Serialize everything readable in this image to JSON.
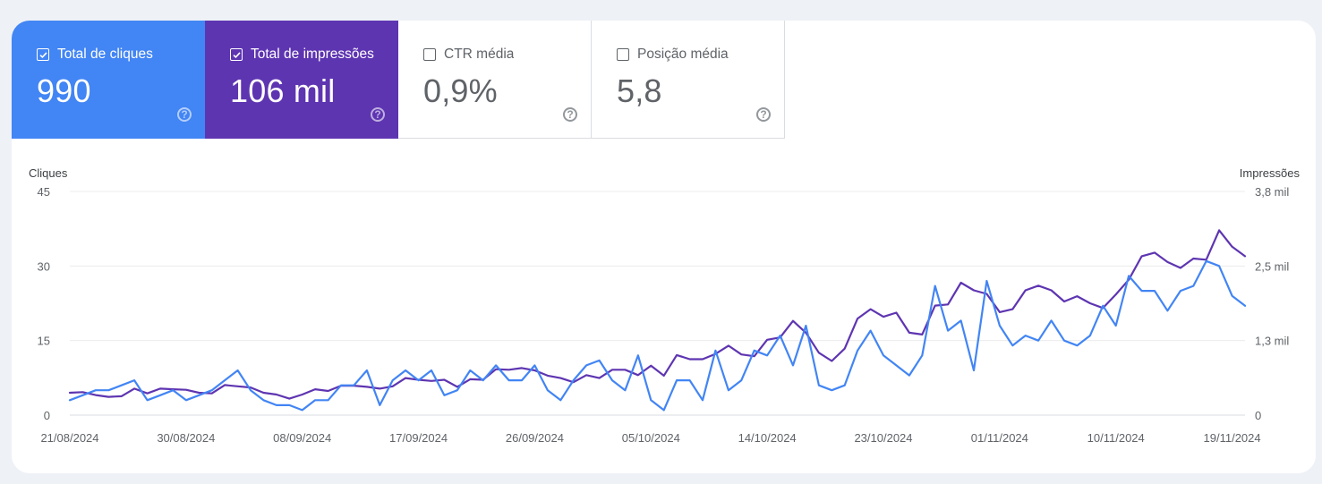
{
  "metrics": [
    {
      "label": "Total de cliques",
      "value": "990",
      "checked": true
    },
    {
      "label": "Total de impressões",
      "value": "106 mil",
      "checked": true
    },
    {
      "label": "CTR média",
      "value": "0,9%",
      "checked": false
    },
    {
      "label": "Posição média",
      "value": "5,8",
      "checked": false
    }
  ],
  "help_glyph": "?",
  "colors": {
    "clicks": "#4285f4",
    "impressions": "#5e35b1"
  },
  "chart_data": {
    "type": "line",
    "left_axis_title": "Cliques",
    "right_axis_title": "Impressões",
    "y_left_ticks": [
      "0",
      "15",
      "30",
      "45"
    ],
    "y_right_ticks": [
      "0",
      "1,3 mil",
      "2,5 mil",
      "3,8 mil"
    ],
    "ylim_left": [
      0,
      45
    ],
    "ylim_right": [
      0,
      3.8
    ],
    "x_tick_labels": [
      "21/08/2024",
      "30/08/2024",
      "08/09/2024",
      "17/09/2024",
      "26/09/2024",
      "05/10/2024",
      "14/10/2024",
      "23/10/2024",
      "01/11/2024",
      "10/11/2024",
      "19/11/2024"
    ],
    "x_tick_indices": [
      0,
      9,
      18,
      27,
      36,
      45,
      54,
      63,
      72,
      81,
      90
    ],
    "grid": true,
    "series": [
      {
        "name": "Cliques",
        "axis": "left",
        "values": [
          3,
          4,
          5,
          5,
          6,
          7,
          3,
          4,
          5,
          3,
          4,
          5,
          7,
          9,
          5,
          3,
          2,
          2,
          1,
          3,
          3,
          6,
          6,
          9,
          2,
          7,
          9,
          7,
          9,
          4,
          5,
          9,
          7,
          10,
          7,
          7,
          10,
          5,
          3,
          7,
          10,
          11,
          7,
          5,
          12,
          3,
          1,
          7,
          7,
          3,
          13,
          5,
          7,
          13,
          12,
          16,
          10,
          18,
          6,
          5,
          6,
          13,
          17,
          12,
          10,
          8,
          12,
          26,
          17,
          19,
          9,
          27,
          18,
          14,
          16,
          15,
          19,
          15,
          14,
          16,
          22,
          18,
          28,
          25,
          25,
          21,
          25,
          26,
          31,
          30,
          24,
          22
        ]
      },
      {
        "name": "Impressões",
        "axis": "right",
        "values": [
          0.38,
          0.39,
          0.34,
          0.31,
          0.32,
          0.45,
          0.37,
          0.45,
          0.44,
          0.43,
          0.38,
          0.37,
          0.51,
          0.49,
          0.47,
          0.38,
          0.35,
          0.28,
          0.35,
          0.44,
          0.41,
          0.5,
          0.5,
          0.48,
          0.45,
          0.49,
          0.63,
          0.6,
          0.58,
          0.6,
          0.48,
          0.61,
          0.6,
          0.78,
          0.77,
          0.8,
          0.76,
          0.67,
          0.63,
          0.56,
          0.68,
          0.63,
          0.77,
          0.77,
          0.68,
          0.84,
          0.67,
          1.02,
          0.95,
          0.95,
          1.04,
          1.18,
          1.03,
          1.0,
          1.28,
          1.32,
          1.6,
          1.4,
          1.06,
          0.92,
          1.13,
          1.64,
          1.8,
          1.67,
          1.74,
          1.4,
          1.37,
          1.86,
          1.88,
          2.25,
          2.12,
          2.06,
          1.75,
          1.8,
          2.12,
          2.2,
          2.12,
          1.93,
          2.02,
          1.9,
          1.82,
          2.05,
          2.3,
          2.7,
          2.76,
          2.6,
          2.5,
          2.66,
          2.64,
          3.14,
          2.86,
          2.7
        ]
      }
    ]
  }
}
